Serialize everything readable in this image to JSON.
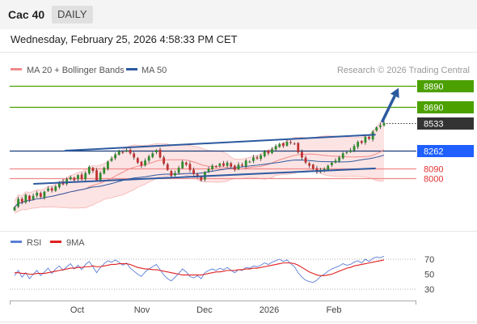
{
  "header": {
    "title": "Cac 40",
    "period": "DAILY"
  },
  "datetime": "Wednesday, February 25, 2026 4:58:33 PM CET",
  "legend": {
    "items": [
      {
        "label": "MA 20 + Bollinger Bands",
        "color": "#f08a8a"
      },
      {
        "label": "MA 50",
        "color": "#2c5aa0"
      }
    ],
    "copyright": "Research © 2026 Trading Central"
  },
  "rsi_legend": {
    "items": [
      {
        "label": "RSI",
        "color": "#5b7fd6"
      },
      {
        "label": "9MA",
        "color": "#e02020"
      }
    ]
  },
  "chart_data": [
    {
      "type": "candlestick",
      "title": "",
      "xlabel": "",
      "ylabel": "",
      "x_ticks": [
        "Oct",
        "Nov",
        "Dec",
        "2026",
        "Feb"
      ],
      "ylim": [
        7750,
        8950
      ],
      "levels": [
        {
          "value": 8890,
          "label": "8890",
          "style": "solid",
          "color": "#4ca000",
          "tag_bg": "#4ca000"
        },
        {
          "value": 8690,
          "label": "8690",
          "style": "solid",
          "color": "#4ca000",
          "tag_bg": "#4ca000"
        },
        {
          "value": 8533,
          "label": "8533",
          "style": "dotted",
          "color": "#333333",
          "tag_bg": "#333333"
        },
        {
          "value": 8262,
          "label": "8262",
          "style": "solid",
          "color": "#1a3d7a",
          "tag_bg": "#1f5fff"
        },
        {
          "value": 8090,
          "label": "8090",
          "style": "solid",
          "color": "#f08a8a",
          "tag_bg": ""
        },
        {
          "value": 8000,
          "label": "8000",
          "style": "solid",
          "color": "#f08a8a",
          "tag_bg": ""
        }
      ],
      "trend_channel": {
        "upper": [
          [
            "2025-09-25",
            8265
          ],
          [
            "2026-02-21",
            8420
          ]
        ],
        "lower": [
          [
            "2025-09-10",
            7945
          ],
          [
            "2026-02-21",
            8095
          ]
        ]
      },
      "forecast_arrow": {
        "from": [
          "2026-02-24",
          8540
        ],
        "to": [
          "2026-03-04",
          8870
        ]
      },
      "closes": [
        7720,
        7800,
        7770,
        7840,
        7790,
        7830,
        7860,
        7820,
        7870,
        7900,
        7880,
        7920,
        7960,
        7940,
        7990,
        8010,
        7980,
        8030,
        7990,
        8050,
        8110,
        8070,
        7980,
        8050,
        8100,
        8160,
        8190,
        8230,
        8260,
        8250,
        8270,
        8240,
        8200,
        8150,
        8120,
        8170,
        8210,
        8240,
        8270,
        8200,
        8140,
        8080,
        8020,
        8050,
        8100,
        8160,
        8130,
        8080,
        8040,
        8020,
        7980,
        8060,
        8090,
        8120,
        8110,
        8140,
        8120,
        8150,
        8110,
        8080,
        8130,
        8120,
        8170,
        8160,
        8200,
        8190,
        8220,
        8260,
        8240,
        8280,
        8310,
        8330,
        8310,
        8350,
        8340,
        8330,
        8250,
        8200,
        8150,
        8120,
        8090,
        8060,
        8080,
        8090,
        8120,
        8150,
        8170,
        8200,
        8240,
        8250,
        8270,
        8310,
        8350,
        8340,
        8400,
        8380,
        8450,
        8490,
        8510,
        8533
      ]
    },
    {
      "type": "line",
      "title": "",
      "xlabel": "",
      "ylabel": "",
      "ylim": [
        20,
        80
      ],
      "y_ticks": [
        70,
        50,
        30
      ],
      "series": [
        {
          "name": "RSI",
          "values": [
            48,
            55,
            46,
            52,
            44,
            50,
            55,
            48,
            53,
            58,
            51,
            57,
            61,
            55,
            60,
            64,
            57,
            62,
            56,
            63,
            67,
            60,
            52,
            59,
            64,
            68,
            66,
            69,
            66,
            62,
            65,
            58,
            54,
            50,
            47,
            53,
            57,
            60,
            63,
            56,
            49,
            44,
            41,
            46,
            51,
            57,
            53,
            47,
            45,
            48,
            44,
            52,
            55,
            57,
            55,
            58,
            56,
            59,
            55,
            52,
            56,
            55,
            59,
            58,
            61,
            60,
            62,
            65,
            63,
            66,
            68,
            70,
            67,
            69,
            64,
            60,
            52,
            46,
            42,
            40,
            39,
            42,
            47,
            50,
            54,
            57,
            59,
            61,
            64,
            62,
            63,
            66,
            68,
            65,
            70,
            67,
            71,
            73,
            72,
            74
          ]
        },
        {
          "name": "9MA",
          "values": [
            52,
            52,
            51,
            51,
            50,
            50,
            51,
            51,
            51,
            52,
            53,
            54,
            55,
            56,
            57,
            58,
            58,
            59,
            59,
            60,
            60,
            61,
            60,
            60,
            61,
            62,
            63,
            63,
            64,
            64,
            64,
            63,
            61,
            59,
            58,
            57,
            57,
            56,
            56,
            55,
            54,
            53,
            52,
            51,
            50,
            49,
            49,
            49,
            49,
            49,
            49,
            50,
            51,
            52,
            53,
            53,
            54,
            55,
            55,
            55,
            56,
            56,
            57,
            57,
            58,
            58,
            59,
            60,
            61,
            62,
            63,
            64,
            65,
            65,
            65,
            64,
            62,
            59,
            56,
            53,
            51,
            49,
            48,
            48,
            49,
            50,
            52,
            54,
            56,
            58,
            59,
            61,
            62,
            63,
            64,
            65,
            66,
            67,
            68,
            69
          ]
        }
      ]
    }
  ]
}
